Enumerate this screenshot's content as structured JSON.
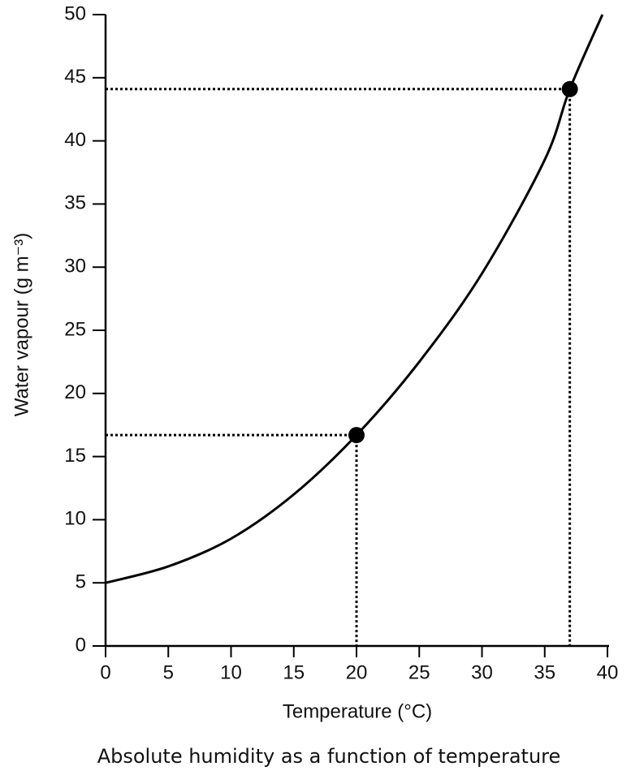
{
  "chart_data": {
    "type": "line",
    "caption": "Absolute humidity as a function of temperature",
    "xlabel": "Temperature (°C)",
    "ylabel": "Water vapour (g m⁻³)",
    "x": [
      0,
      5,
      10,
      15,
      20,
      25,
      30,
      35,
      37,
      39.6
    ],
    "series": [
      {
        "color": "#000000",
        "values": [
          5,
          6.3,
          8.5,
          12,
          16.7,
          22.5,
          29.5,
          38.5,
          44.1,
          50
        ]
      }
    ],
    "highlights": {
      "x": [
        20,
        37
      ],
      "y": [
        16.7,
        44.1
      ]
    },
    "xlim": [
      0,
      40
    ],
    "xticks": [
      0,
      5,
      10,
      15,
      20,
      25,
      30,
      35,
      40
    ],
    "ylim": [
      0,
      50
    ],
    "yticks": [
      0,
      5,
      10,
      15,
      20,
      25,
      30,
      35,
      40,
      45,
      50
    ],
    "grid": false
  }
}
